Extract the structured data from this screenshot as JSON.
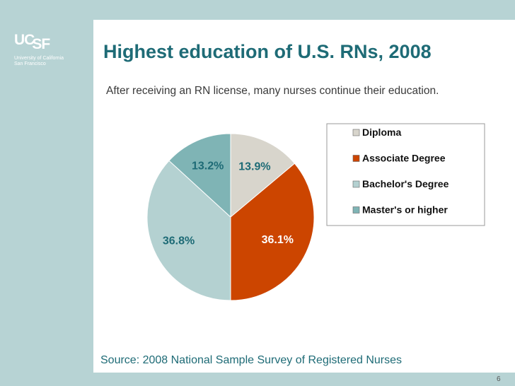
{
  "logo": {
    "mark_u": "UC",
    "mark_sf": "SF",
    "line1": "University of California",
    "line2": "San Francisco"
  },
  "slide": {
    "title": "Highest education of U.S. RNs, 2008",
    "subtitle": "After receiving an RN license, many nurses continue their education.",
    "source": "Source: 2008 National Sample Survey of Registered Nurses",
    "page_number": "6"
  },
  "colors": {
    "background_band": "#b7d3d4",
    "title": "#1e6b76"
  },
  "chart_data": {
    "type": "pie",
    "title": "",
    "legend_position": "right",
    "slices": [
      {
        "name": "Diploma",
        "value": 13.9,
        "label": "13.9%",
        "color": "#d8d5cc",
        "label_color": "#1e6b76"
      },
      {
        "name": "Associate Degree",
        "value": 36.1,
        "label": "36.1%",
        "color": "#cc4500",
        "label_color": "#ffffff"
      },
      {
        "name": "Bachelor's Degree",
        "value": 36.8,
        "label": "36.8%",
        "color": "#b4d1d1",
        "label_color": "#1e6b76"
      },
      {
        "name": "Master's or higher",
        "value": 13.2,
        "label": "13.2%",
        "color": "#7fb4b5",
        "label_color": "#1e6b76"
      }
    ]
  }
}
